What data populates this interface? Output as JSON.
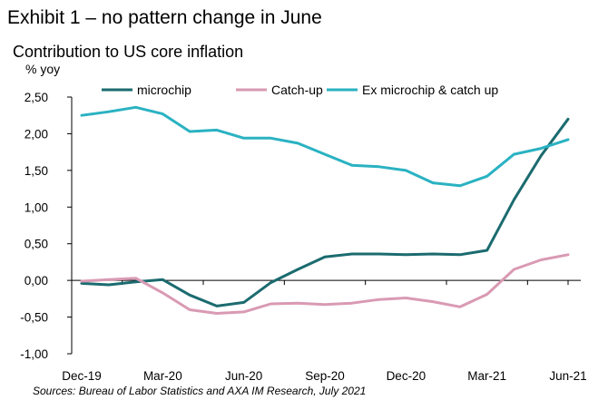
{
  "header": {
    "exhibit_title": "Exhibit 1 – no pattern change in June",
    "chart_title": "Contribution to US core inflation",
    "unit": "% yoy"
  },
  "footer": {
    "source": "Sources: Bureau of Labor Statistics and AXA IM Research, July 2021"
  },
  "chart_data": {
    "type": "line",
    "title": "Contribution to US core inflation",
    "ylabel": "% yoy",
    "xlabel": "",
    "ylim": [
      -1.0,
      2.5
    ],
    "yticks": [
      2.5,
      2.0,
      1.5,
      1.0,
      0.5,
      0.0,
      -0.5,
      -1.0
    ],
    "ytick_labels": [
      "2,50",
      "2,00",
      "1,50",
      "1,00",
      "0,50",
      "0,00",
      "-0,50",
      "-1,00"
    ],
    "x": [
      "Dec-19",
      "Jan-20",
      "Feb-20",
      "Mar-20",
      "Apr-20",
      "May-20",
      "Jun-20",
      "Jul-20",
      "Aug-20",
      "Sep-20",
      "Oct-20",
      "Nov-20",
      "Dec-20",
      "Jan-21",
      "Feb-21",
      "Mar-21",
      "Apr-21",
      "May-21",
      "Jun-21"
    ],
    "xtick_labels": [
      "Dec-19",
      "Mar-20",
      "Jun-20",
      "Sep-20",
      "Dec-20",
      "Mar-21",
      "Jun-21"
    ],
    "grid": false,
    "legend": "top",
    "series": [
      {
        "name": "microchip",
        "color": "#1b6b6f",
        "values": [
          -0.04,
          -0.06,
          -0.02,
          0.01,
          -0.2,
          -0.35,
          -0.3,
          -0.03,
          0.15,
          0.32,
          0.36,
          0.36,
          0.35,
          0.36,
          0.35,
          0.41,
          1.1,
          1.7,
          2.2
        ]
      },
      {
        "name": "Catch-up",
        "color": "#d99ab3",
        "values": [
          -0.01,
          0.01,
          0.03,
          -0.17,
          -0.4,
          -0.45,
          -0.43,
          -0.32,
          -0.31,
          -0.33,
          -0.31,
          -0.26,
          -0.24,
          -0.29,
          -0.36,
          -0.19,
          0.15,
          0.28,
          0.35
        ]
      },
      {
        "name": "Ex microchip & catch up",
        "color": "#2ab2c2",
        "values": [
          2.25,
          2.3,
          2.36,
          2.27,
          2.03,
          2.05,
          1.94,
          1.94,
          1.87,
          1.72,
          1.57,
          1.55,
          1.5,
          1.33,
          1.29,
          1.42,
          1.72,
          1.8,
          1.92
        ]
      }
    ]
  }
}
